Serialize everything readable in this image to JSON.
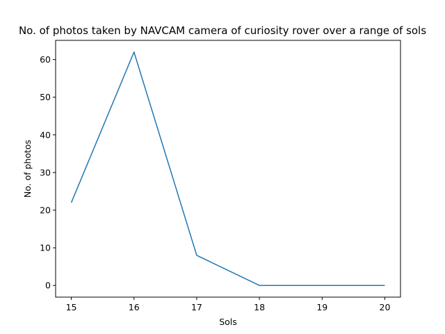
{
  "chart_data": {
    "type": "line",
    "title": "No. of photos taken by NAVCAM camera of curiosity rover over a range of sols",
    "xlabel": "Sols",
    "ylabel": "No. of photos",
    "x": [
      15,
      16,
      17,
      18,
      19,
      20
    ],
    "series": [
      {
        "values": [
          22,
          62,
          8,
          0,
          0,
          0
        ],
        "color": "#1f77b4"
      }
    ],
    "xticks": [
      15,
      16,
      17,
      18,
      19,
      20
    ],
    "yticks": [
      0,
      10,
      20,
      30,
      40,
      50,
      60
    ],
    "xlim": [
      14.75,
      20.25
    ],
    "ylim": [
      -3.1,
      65.1
    ],
    "grid": false,
    "legend": "none"
  }
}
